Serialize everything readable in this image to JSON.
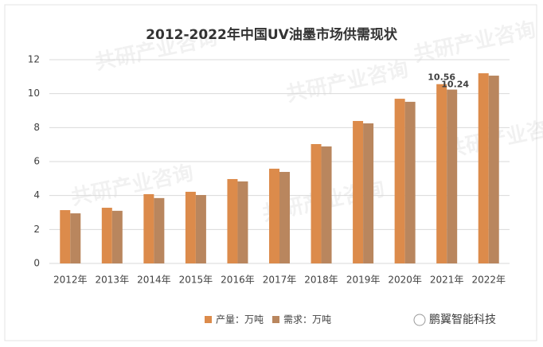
{
  "chart_data": {
    "type": "bar",
    "title": "2012-2022年中国UV油墨市场供需现状",
    "categories": [
      "2012年",
      "2013年",
      "2014年",
      "2015年",
      "2016年",
      "2017年",
      "2018年",
      "2019年",
      "2020年",
      "2021年",
      "2022年"
    ],
    "series": [
      {
        "name": "产量：万吨",
        "color": "#dc8b4b",
        "values": [
          3.14,
          3.28,
          4.08,
          4.22,
          4.97,
          5.58,
          7.03,
          8.39,
          9.7,
          10.56,
          11.2
        ],
        "value_labels": [
          null,
          null,
          null,
          null,
          null,
          null,
          null,
          null,
          null,
          "10.56",
          null
        ]
      },
      {
        "name": "需求：万吨",
        "color": "#b9865e",
        "values": [
          2.95,
          3.1,
          3.85,
          4.03,
          4.83,
          5.39,
          6.89,
          8.25,
          9.52,
          10.24,
          11.06
        ],
        "value_labels": [
          null,
          null,
          null,
          null,
          null,
          null,
          null,
          null,
          null,
          "10.24",
          null
        ]
      }
    ],
    "ylim": [
      0,
      12
    ],
    "yticks": [
      0,
      2,
      4,
      6,
      8,
      10,
      12
    ],
    "grid": true,
    "legend": "bottom",
    "watermark": "共研产业咨询",
    "source_note": "鹏翼智能科技"
  }
}
